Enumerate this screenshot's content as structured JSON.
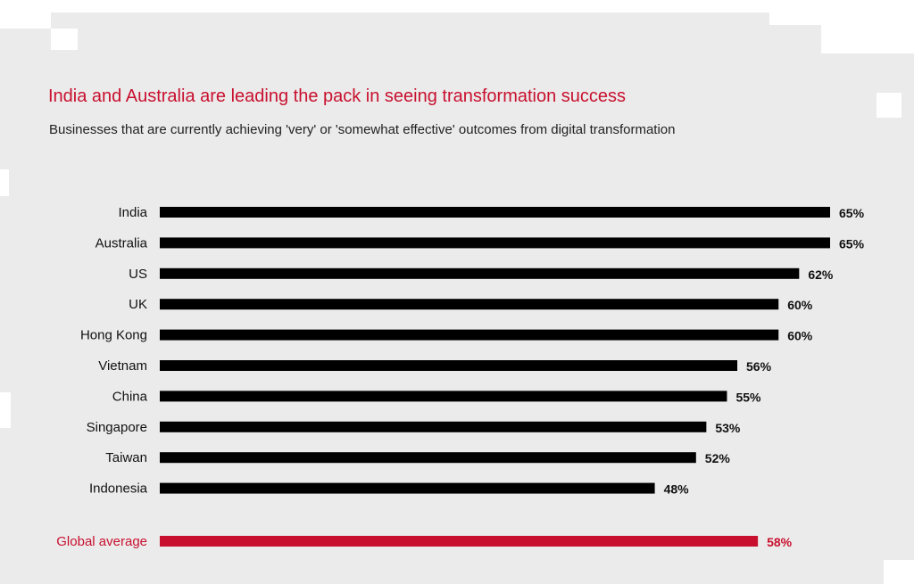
{
  "chart_data": {
    "type": "bar",
    "orientation": "horizontal",
    "title": "India and Australia are leading the pack in seeing transformation success",
    "subtitle": "Businesses that are currently achieving 'very' or 'somewhat effective' outcomes from digital transformation",
    "categories": [
      "India",
      "Australia",
      "US",
      "UK",
      "Hong Kong",
      "Vietnam",
      "China",
      "Singapore",
      "Taiwan",
      "Indonesia"
    ],
    "values": [
      65,
      65,
      62,
      60,
      60,
      56,
      55,
      53,
      52,
      48
    ],
    "value_suffix": "%",
    "bar_color": "#000000",
    "average": {
      "label": "Global average",
      "value": 58,
      "color": "#c8102e"
    },
    "xlim": [
      0,
      65
    ],
    "grid": false,
    "legend": "none"
  }
}
